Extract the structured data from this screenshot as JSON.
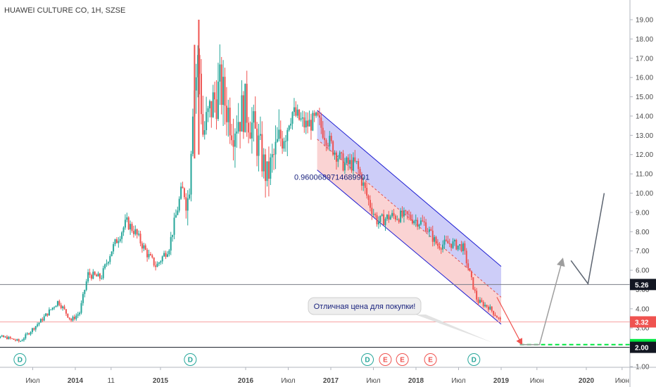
{
  "chart_data": {
    "type": "candlestick",
    "title": "HUAWEI CULTURE CO, 1H, SZSE",
    "ylim": [
      0.8,
      19.9
    ],
    "y_ticks": [
      19.0,
      18.0,
      17.0,
      16.0,
      15.0,
      14.0,
      13.0,
      12.0,
      11.0,
      10.0,
      9.0,
      8.0,
      7.0,
      6.0,
      5.0,
      4.0,
      3.0,
      1.0
    ],
    "y_tick_labels": [
      "19.00",
      "18.00",
      "17.00",
      "16.00",
      "15.00",
      "14.00",
      "13.00",
      "12.00",
      "11.00",
      "10.00",
      "9.00",
      "8.00",
      "7.00",
      "6.00",
      "5.00",
      "4.00",
      "3.00",
      "1.00"
    ],
    "x_ticks": [
      {
        "label": "Июл",
        "t": 2013.5,
        "bold": false
      },
      {
        "label": "2014",
        "t": 2014.0,
        "bold": true
      },
      {
        "label": "11",
        "t": 2014.42,
        "bold": false
      },
      {
        "label": "2015",
        "t": 2015.0,
        "bold": true
      },
      {
        "label": "2016",
        "t": 2016.0,
        "bold": true
      },
      {
        "label": "Июл",
        "t": 2016.5,
        "bold": false
      },
      {
        "label": "2017",
        "t": 2017.0,
        "bold": true
      },
      {
        "label": "Июл",
        "t": 2017.5,
        "bold": false
      },
      {
        "label": "2018",
        "t": 2018.0,
        "bold": true
      },
      {
        "label": "Июл",
        "t": 2018.5,
        "bold": false
      },
      {
        "label": "2019",
        "t": 2019.0,
        "bold": true
      },
      {
        "label": "Июн",
        "t": 2019.42,
        "bold": false
      },
      {
        "label": "2020",
        "t": 2020.0,
        "bold": true
      },
      {
        "label": "Июн",
        "t": 2020.42,
        "bold": false
      }
    ],
    "price_labels": [
      {
        "value": 5.26,
        "text": "5.26",
        "bg": "#131722",
        "fg": "#ffffff"
      },
      {
        "value": 3.32,
        "text": "3.32",
        "bg": "#ef5350",
        "fg": "#ffffff"
      },
      {
        "value": 2.14,
        "text": "2.14",
        "bg": "#00e640",
        "fg": "#131722"
      },
      {
        "value": 2.0,
        "text": "2.00",
        "bg": "#131722",
        "fg": "#ffffff"
      }
    ],
    "horizontal_lines": [
      {
        "value": 5.26,
        "color": "#787b86"
      },
      {
        "value": 3.32,
        "color": "#f7a1a1"
      },
      {
        "value": 2.0,
        "color": "#131722"
      },
      {
        "value": 2.14,
        "color": "#00e640",
        "dashed": true,
        "from_t": 2019.22
      }
    ],
    "channel": {
      "t_start": 2016.84,
      "t_end": 2019.0,
      "upper_start": 14.3,
      "upper_end": 6.2,
      "mid_start": 12.8,
      "mid_end": 4.6,
      "lower_start": 11.2,
      "lower_end": 3.2,
      "label": "0.9600689714689901",
      "label_t": 2016.57,
      "label_v": 10.7
    },
    "events": [
      {
        "t": 2013.35,
        "letter": "D",
        "color": "#26a69a"
      },
      {
        "t": 2015.35,
        "letter": "D",
        "color": "#26a69a"
      },
      {
        "t": 2017.43,
        "letter": "D",
        "color": "#26a69a"
      },
      {
        "t": 2017.64,
        "letter": "E",
        "color": "#ef5350"
      },
      {
        "t": 2017.84,
        "letter": "E",
        "color": "#ef5350"
      },
      {
        "t": 2018.17,
        "letter": "E",
        "color": "#ef5350"
      },
      {
        "t": 2018.68,
        "letter": "D",
        "color": "#26a69a"
      }
    ],
    "projection": {
      "red_arrow": [
        [
          2018.95,
          4.6
        ],
        [
          2019.24,
          2.18
        ]
      ],
      "grey_arrow": [
        [
          2019.22,
          2.14
        ],
        [
          2019.45,
          2.14
        ],
        [
          2019.72,
          6.55
        ]
      ],
      "navy_line": [
        [
          2019.82,
          6.5
        ],
        [
          2020.02,
          5.3
        ],
        [
          2020.21,
          10.0
        ]
      ]
    },
    "annotation": {
      "text": "Отличная цена для покупки!"
    },
    "colors": {
      "up": "#26a69a",
      "down": "#ef5350",
      "channel_upper": "#9090f0",
      "channel_lower": "#f7b6b6",
      "channel_line": "#1e1ed2"
    }
  }
}
